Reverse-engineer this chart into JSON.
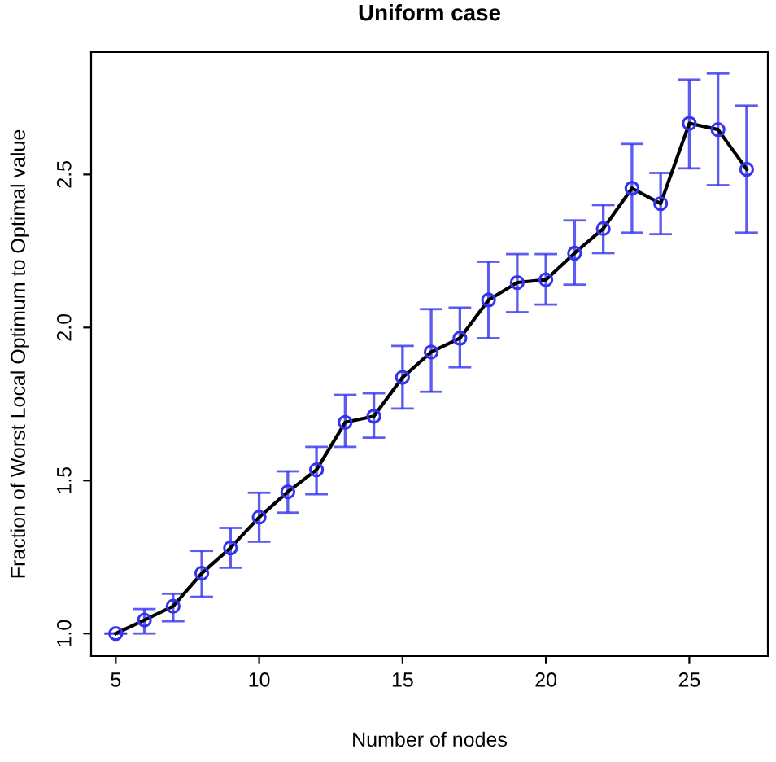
{
  "chart_data": {
    "type": "line",
    "title": "Uniform case",
    "xlabel": "Number of nodes",
    "ylabel": "Fraction of Worst Local Optimum to Optimal value",
    "x": [
      5,
      6,
      7,
      8,
      9,
      10,
      11,
      12,
      13,
      14,
      15,
      16,
      17,
      18,
      19,
      20,
      21,
      22,
      23,
      24,
      25,
      26,
      27
    ],
    "series": [
      {
        "color": "#000000",
        "marker": "none",
        "values": [
          1.0,
          1.044,
          1.089,
          1.197,
          1.28,
          1.38,
          1.463,
          1.535,
          1.69,
          1.71,
          1.837,
          1.92,
          1.965,
          2.09,
          2.147,
          2.156,
          2.243,
          2.323,
          2.455,
          2.405,
          2.667,
          2.647,
          2.517
        ]
      },
      {
        "type": "scatter",
        "color": "#3333ee",
        "marker": "circle",
        "values": [
          1.0,
          1.044,
          1.089,
          1.197,
          1.28,
          1.38,
          1.463,
          1.535,
          1.69,
          1.71,
          1.837,
          1.92,
          1.965,
          2.09,
          2.147,
          2.156,
          2.243,
          2.323,
          2.455,
          2.405,
          2.667,
          2.647,
          2.517
        ],
        "errors": [
          [
            1.0,
            1.0
          ],
          [
            1.0,
            1.08
          ],
          [
            1.04,
            1.13
          ],
          [
            1.12,
            1.27
          ],
          [
            1.215,
            1.345
          ],
          [
            1.3,
            1.46
          ],
          [
            1.395,
            1.53
          ],
          [
            1.455,
            1.61
          ],
          [
            1.61,
            1.78
          ],
          [
            1.64,
            1.785
          ],
          [
            1.735,
            1.94
          ],
          [
            1.79,
            2.06
          ],
          [
            1.87,
            2.065
          ],
          [
            1.965,
            2.215
          ],
          [
            2.05,
            2.24
          ],
          [
            2.075,
            2.24
          ],
          [
            2.14,
            2.35
          ],
          [
            2.243,
            2.4
          ],
          [
            2.31,
            2.6
          ],
          [
            2.305,
            2.505
          ],
          [
            2.52,
            2.81
          ],
          [
            2.465,
            2.83
          ],
          [
            2.31,
            2.725
          ]
        ]
      }
    ],
    "xlim": [
      4.14,
      27.74
    ],
    "ylim": [
      0.926,
      2.9
    ],
    "xticks": [
      5,
      10,
      15,
      20,
      25
    ],
    "yticks": [
      {
        "value": 1,
        "label": "1.0"
      },
      1.5,
      {
        "value": 2,
        "label": "2.0"
      },
      2.5
    ],
    "grid": false,
    "legend": false
  }
}
